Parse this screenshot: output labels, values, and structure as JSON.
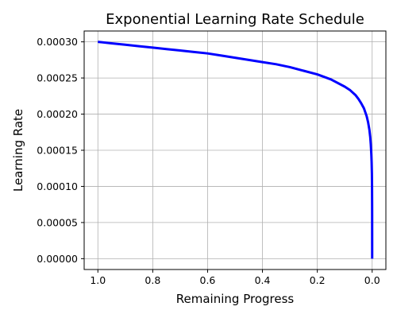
{
  "chart_data": {
    "type": "line",
    "title": "Exponential Learning Rate Schedule",
    "xlabel": "Remaining Progress",
    "ylabel": "Learning Rate",
    "xlim": [
      1.05,
      -0.05
    ],
    "ylim": [
      -1.5e-05,
      0.000315
    ],
    "x_inverted": true,
    "grid": true,
    "x_ticks": [
      {
        "value": 1.0,
        "label": "1.0"
      },
      {
        "value": 0.8,
        "label": "0.8"
      },
      {
        "value": 0.6,
        "label": "0.6"
      },
      {
        "value": 0.4,
        "label": "0.4"
      },
      {
        "value": 0.2,
        "label": "0.2"
      },
      {
        "value": 0.0,
        "label": "0.0"
      }
    ],
    "y_ticks": [
      {
        "value": 0.0,
        "label": "0.00000"
      },
      {
        "value": 5e-05,
        "label": "0.00005"
      },
      {
        "value": 0.0001,
        "label": "0.00010"
      },
      {
        "value": 0.00015,
        "label": "0.00015"
      },
      {
        "value": 0.0002,
        "label": "0.00020"
      },
      {
        "value": 0.00025,
        "label": "0.00025"
      },
      {
        "value": 0.0003,
        "label": "0.00030"
      }
    ],
    "series": [
      {
        "color": "#0000ff",
        "x": [
          1.0,
          0.95,
          0.9,
          0.85,
          0.8,
          0.75,
          0.7,
          0.65,
          0.6,
          0.55,
          0.5,
          0.45,
          0.4,
          0.35,
          0.3,
          0.25,
          0.2,
          0.15,
          0.1,
          0.08,
          0.06,
          0.05,
          0.04,
          0.03,
          0.02,
          0.015,
          0.01,
          0.007,
          0.005,
          0.003,
          0.002,
          0.001,
          0.0005,
          0.0002,
          0.0001,
          0.0
        ],
        "y": [
          0.0003,
          0.000298,
          0.000296,
          0.000294,
          0.000292,
          0.00029,
          0.000288,
          0.000286,
          0.000284,
          0.000281,
          0.000278,
          0.000275,
          0.000272,
          0.000269,
          0.000265,
          0.00026,
          0.000255,
          0.000248,
          0.000238,
          0.000233,
          0.000226,
          0.000221,
          0.000215,
          0.000208,
          0.000197,
          0.000189,
          0.000178,
          0.000168,
          0.000158,
          0.000144,
          0.000134,
          0.000118,
          0.0001,
          7.5e-05,
          6e-05,
          0.0
        ]
      }
    ]
  }
}
